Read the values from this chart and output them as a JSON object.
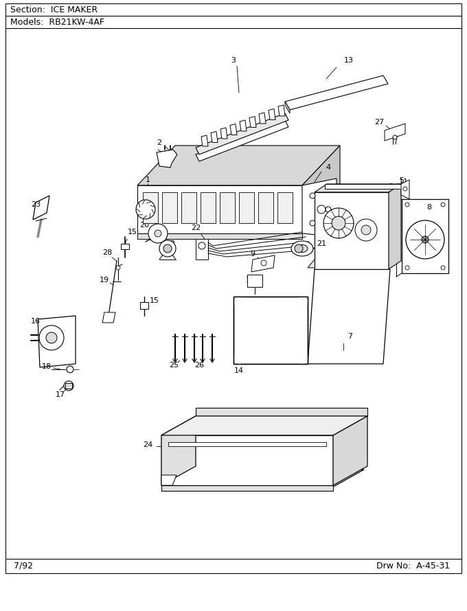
{
  "section_title": "Section:  ICE MAKER",
  "models_title": "Models:  RB21KW-4AF",
  "footer_left": "7/92",
  "footer_right": "Drw No:  A-45-31",
  "bg_color": "#ffffff",
  "fig_width": 6.8,
  "fig_height": 8.9,
  "dpi": 100
}
